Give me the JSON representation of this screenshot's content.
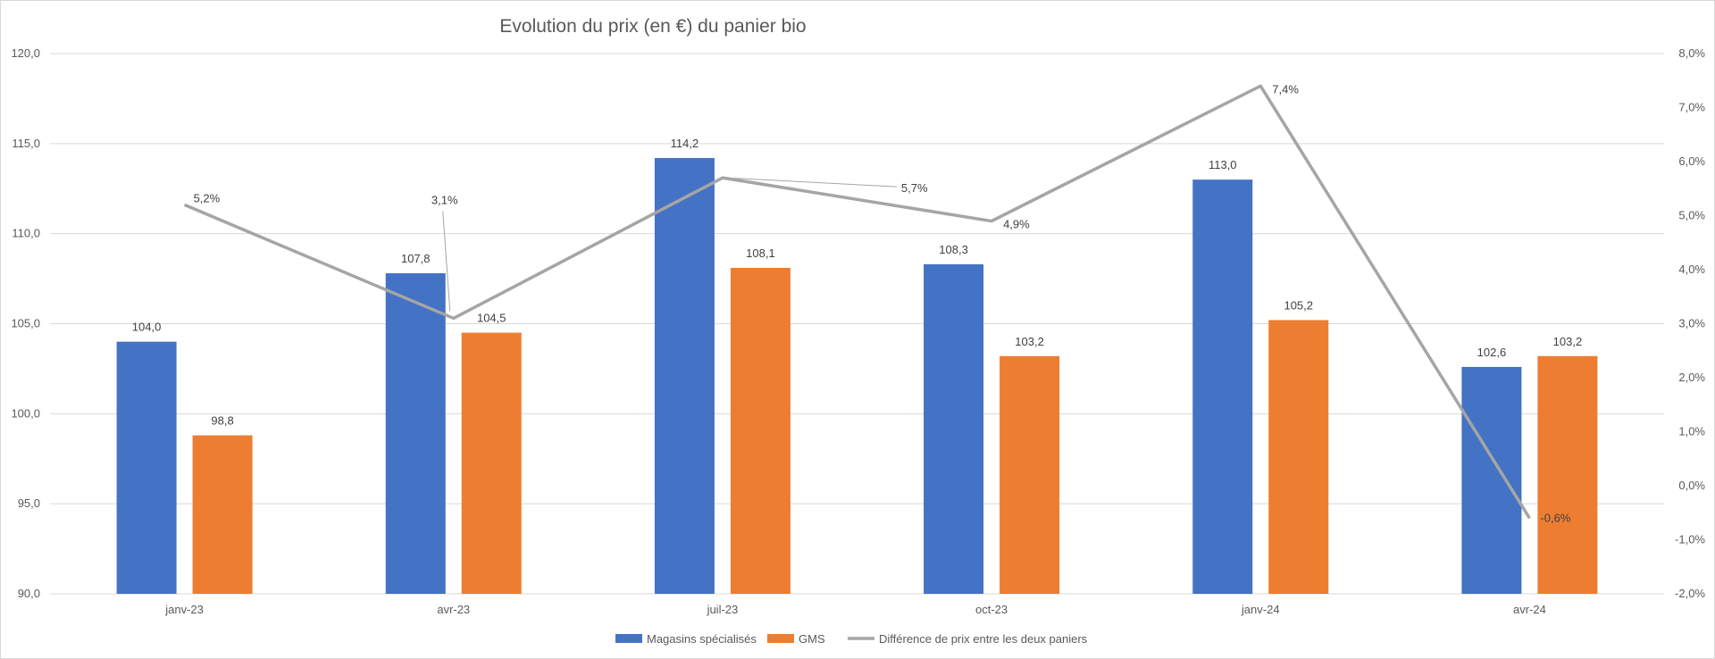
{
  "chart_data": {
    "type": "bar",
    "title": "Evolution du prix (en €) du panier bio",
    "categories": [
      "janv-23",
      "avr-23",
      "juil-23",
      "oct-23",
      "janv-24",
      "avr-24"
    ],
    "series": [
      {
        "name": "Magasins spécialisés",
        "type": "bar",
        "axis": "left",
        "color": "#4472C4",
        "values": [
          104.0,
          107.8,
          114.2,
          108.3,
          113.0,
          102.6
        ],
        "labels": [
          "104,0",
          "107,8",
          "114,2",
          "108,3",
          "113,0",
          "102,6"
        ]
      },
      {
        "name": "GMS",
        "type": "bar",
        "axis": "left",
        "color": "#ED7D31",
        "values": [
          98.8,
          104.5,
          108.1,
          103.2,
          105.2,
          103.2
        ],
        "labels": [
          "98,8",
          "104,5",
          "108,1",
          "103,2",
          "105,2",
          "103,2"
        ]
      },
      {
        "name": "Différence de prix entre les deux paniers",
        "type": "line",
        "axis": "right",
        "color": "#A5A5A5",
        "values": [
          5.2,
          3.1,
          5.7,
          4.9,
          7.4,
          -0.6
        ],
        "labels": [
          "5,2%",
          "3,1%",
          "5,7%",
          "4,9%",
          "7,4%",
          "-0,6%"
        ]
      }
    ],
    "y_left": {
      "min": 90,
      "max": 120,
      "step": 5,
      "tick_labels": [
        "90,0",
        "95,0",
        "100,0",
        "105,0",
        "110,0",
        "115,0",
        "120,0"
      ]
    },
    "y_right": {
      "min": -2,
      "max": 8,
      "step": 1,
      "tick_labels": [
        "-2,0%",
        "-1,0%",
        "0,0%",
        "1,0%",
        "2,0%",
        "3,0%",
        "4,0%",
        "5,0%",
        "6,0%",
        "7,0%",
        "8,0%"
      ]
    },
    "grid": true,
    "legend_position": "bottom"
  }
}
